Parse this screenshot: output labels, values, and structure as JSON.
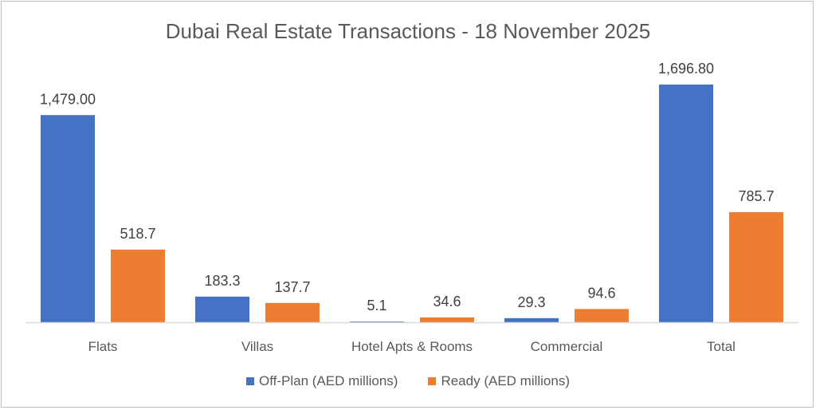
{
  "chart_data": {
    "type": "bar",
    "title": "Dubai Real Estate Transactions - 18 November 2025",
    "categories": [
      "Flats",
      "Villas",
      "Hotel Apts & Rooms",
      "Commercial",
      "Total"
    ],
    "series": [
      {
        "name": "Off-Plan (AED millions)",
        "color": "#4472C4",
        "values": [
          1479.0,
          183.3,
          5.1,
          29.3,
          1696.8
        ],
        "labels": [
          "1,479.00",
          "183.3",
          "5.1",
          "29.3",
          "1,696.80"
        ]
      },
      {
        "name": "Ready (AED millions)",
        "color": "#ED7D31",
        "values": [
          518.7,
          137.7,
          34.6,
          94.6,
          785.7
        ],
        "labels": [
          "518.7",
          "137.7",
          "34.6",
          "94.6",
          "785.7"
        ]
      }
    ],
    "xlabel": "",
    "ylabel": "",
    "ylim": [
      0,
      1696.8
    ],
    "grid": false,
    "legend_position": "bottom"
  }
}
